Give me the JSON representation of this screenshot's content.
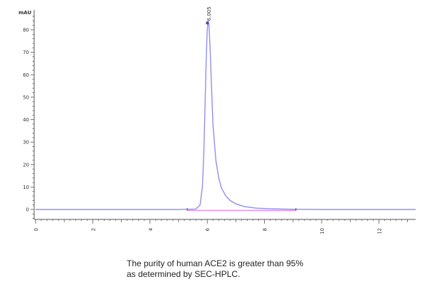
{
  "chart_data": {
    "type": "line",
    "title": "",
    "xlabel": "",
    "ylabel": "mAU",
    "xlim": [
      0,
      13.2
    ],
    "ylim": [
      -5,
      88
    ],
    "x_ticks": [
      0,
      2,
      4,
      6,
      8,
      10,
      12
    ],
    "y_ticks": [
      0,
      10,
      20,
      30,
      40,
      50,
      60,
      70,
      80
    ],
    "grid": false,
    "legend": "none",
    "series": [
      {
        "name": "",
        "color": "#8f8ff0",
        "x": [
          0,
          5.0,
          5.6,
          5.75,
          5.83,
          5.88,
          5.92,
          5.96,
          6.0,
          6.03,
          6.06,
          6.1,
          6.15,
          6.2,
          6.3,
          6.4,
          6.5,
          6.65,
          6.8,
          7.0,
          7.3,
          7.7,
          8.2,
          9.0,
          10.0,
          12.4
        ],
        "y": [
          0,
          0,
          0.2,
          2,
          10,
          25,
          45,
          65,
          80,
          84,
          82,
          72,
          55,
          38,
          22,
          14,
          9.5,
          6,
          4,
          2.5,
          1.3,
          0.6,
          0.3,
          0.1,
          0,
          0
        ]
      }
    ],
    "baseline": {
      "color": "#ee88ee",
      "x": [
        5.3,
        9.1
      ],
      "y": [
        -0.4,
        -0.4
      ]
    },
    "baseline_markers": [
      5.3,
      9.1
    ],
    "apex_marker": {
      "x": 6.03,
      "y": 84
    },
    "peak_label": "6.005"
  },
  "caption": {
    "line1": "The purity of human ACE2 is greater than 95%",
    "line2": "as determined by SEC-HPLC."
  }
}
